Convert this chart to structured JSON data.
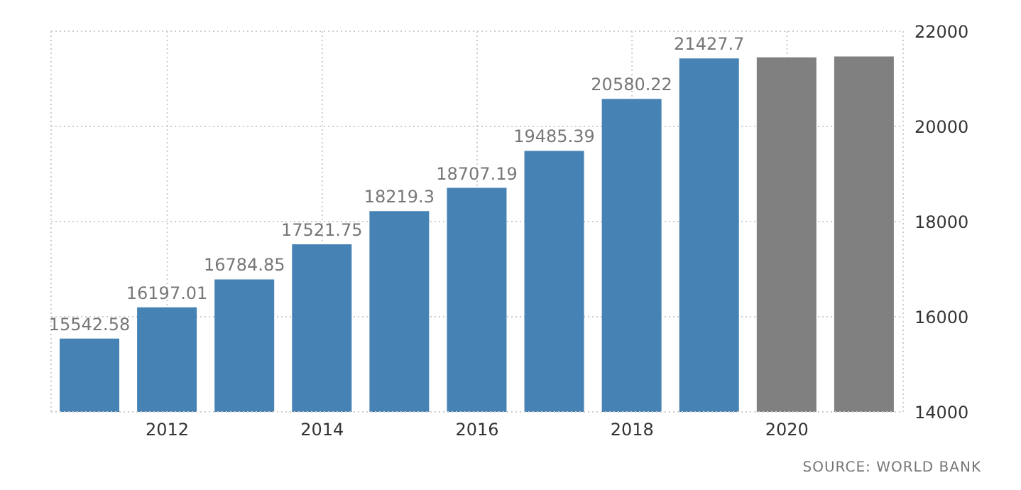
{
  "chart_data": {
    "type": "bar",
    "x": [
      2011,
      2012,
      2013,
      2014,
      2015,
      2016,
      2017,
      2018,
      2019,
      2020,
      2021
    ],
    "values": [
      15542.58,
      16197.01,
      16784.85,
      17521.75,
      18219.3,
      18707.19,
      19485.39,
      20580.22,
      21427.7,
      21450,
      21470
    ],
    "value_labels": [
      "15542.58",
      "16197.01",
      "16784.85",
      "17521.75",
      "18219.3",
      "18707.19",
      "19485.39",
      "20580.22",
      "21427.7",
      null,
      null
    ],
    "colors": [
      "#4682b4",
      "#4682b4",
      "#4682b4",
      "#4682b4",
      "#4682b4",
      "#4682b4",
      "#4682b4",
      "#4682b4",
      "#4682b4",
      "#808080",
      "#808080"
    ],
    "xlim": [
      2010.5,
      2021.5
    ],
    "xticks": [
      2012,
      2014,
      2016,
      2018,
      2020
    ],
    "ylim": [
      14000,
      22000
    ],
    "yticks": [
      14000,
      16000,
      18000,
      20000,
      22000
    ],
    "grid": true,
    "annotations": [
      "SOURCE: WORLD BANK"
    ]
  }
}
